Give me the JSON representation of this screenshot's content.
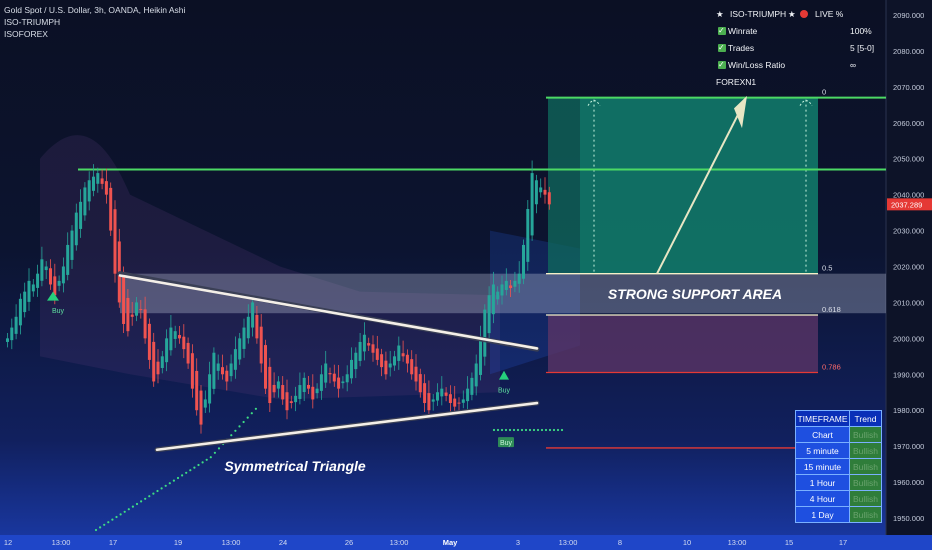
{
  "header": {
    "symbol_line": "Gold Spot / U.S. Dollar, 3h, OANDA, Heikin Ashi",
    "indicator_line": "ISO-TRIUMPH",
    "brand_line": "ISOFOREX"
  },
  "stats_panel": {
    "title": "ISO-TRIUMPH",
    "live_label": "LIVE %",
    "rows": [
      {
        "label": "Winrate",
        "value": "100%"
      },
      {
        "label": "Trades",
        "value": "5 [5-0]"
      },
      {
        "label": "Win/Loss Ratio",
        "value": "∞"
      }
    ],
    "account": "FOREXN1"
  },
  "timeframe_table": {
    "headers": [
      "TIMEFRAME",
      "Trend"
    ],
    "rows": [
      {
        "timeframe": "Chart",
        "trend": "Bullish"
      },
      {
        "timeframe": "5 minute",
        "trend": "Bullish"
      },
      {
        "timeframe": "15 minute",
        "trend": "Bullish"
      },
      {
        "timeframe": "1 Hour",
        "trend": "Bullish"
      },
      {
        "timeframe": "4 Hour",
        "trend": "Bullish"
      },
      {
        "timeframe": "1 Day",
        "trend": "Bullish"
      }
    ]
  },
  "colors": {
    "bull": "#26a69a",
    "bear": "#ef5350",
    "green_line": "#4cd964",
    "target_zone": "#0f6b5e",
    "loss_zone": "#5a3566",
    "support_band": "#c8cde0",
    "fib_line": "#f5f0c8",
    "red_line": "#e53935",
    "current_price_bg": "#e53935"
  },
  "chart_data": {
    "type": "candlestick",
    "title": "Gold Spot / U.S. Dollar, 3h, OANDA, Heikin Ashi",
    "ylim": [
      1946,
      2094
    ],
    "y_ticks": [
      "2090.000",
      "2080.000",
      "2070.000",
      "2060.000",
      "2050.000",
      "2040.000",
      "2030.000",
      "2020.000",
      "2010.000",
      "2000.000",
      "1990.000",
      "1980.000",
      "1970.000",
      "1960.000",
      "1950.000"
    ],
    "current_price": "2037.289",
    "x_ticks": [
      "12",
      "13:00",
      "17",
      "19",
      "13:00",
      "24",
      "26",
      "13:00",
      "May",
      "3",
      "13:00",
      "8",
      "10",
      "13:00",
      "15",
      "17"
    ],
    "candle_closes": [
      2000,
      2003,
      2006,
      2011,
      2013,
      2016,
      2015,
      2018,
      2022,
      2020,
      2015,
      2012,
      2016,
      2020,
      2026,
      2030,
      2035,
      2038,
      2042,
      2044,
      2045,
      2046,
      2043,
      2040,
      2030,
      2018,
      2010,
      2004,
      2002,
      2006,
      2010,
      2008,
      2000,
      1994,
      1988,
      1990,
      1995,
      2000,
      2003,
      2002,
      2000,
      1997,
      1993,
      1986,
      1980,
      1976,
      1983,
      1990,
      1996,
      1993,
      1990,
      1988,
      1993,
      1997,
      2000,
      2003,
      2006,
      2010,
      2000,
      1993,
      1986,
      1982,
      1985,
      1988,
      1983,
      1980,
      1982,
      1984,
      1987,
      1989,
      1986,
      1983,
      1986,
      1990,
      1993,
      1990,
      1988,
      1986,
      1988,
      1990,
      1994,
      1996,
      1999,
      2001,
      1998,
      1996,
      1994,
      1992,
      1990,
      1993,
      1995,
      1998,
      1995,
      1993,
      1990,
      1988,
      1985,
      1982,
      1980,
      1983,
      1985,
      1986,
      1984,
      1982,
      1981,
      1982,
      1983,
      1986,
      1989,
      1993,
      2000,
      2008,
      2012,
      2015,
      2013,
      2015,
      2016,
      2014,
      2016,
      2018,
      2026,
      2036,
      2046,
      2044,
      2042,
      2040,
      2037.3
    ],
    "markers": [
      {
        "label": "Buy",
        "type": "buy"
      },
      {
        "label": "Buy",
        "type": "buy"
      },
      {
        "label": "Buy",
        "type": "buy-box"
      }
    ],
    "levels": {
      "target": 2067,
      "resistance": 2047,
      "support_zone": [
        2007,
        2018
      ],
      "fib_0": 2067,
      "fib_0_5": 2018,
      "fib_0_618": 2006.5,
      "fib_0_786": 1990.5,
      "red_level": 1969.5
    },
    "fib_labels": [
      "0",
      "0.5",
      "0.618",
      "0.786"
    ],
    "annotations": [
      "STRONG SUPPORT AREA",
      "Symmetrical Triangle"
    ],
    "triangle": {
      "upper": [
        [
          2015,
          1998
        ]
      ],
      "lower": [
        [
          1968,
          1981.5
        ]
      ]
    }
  }
}
